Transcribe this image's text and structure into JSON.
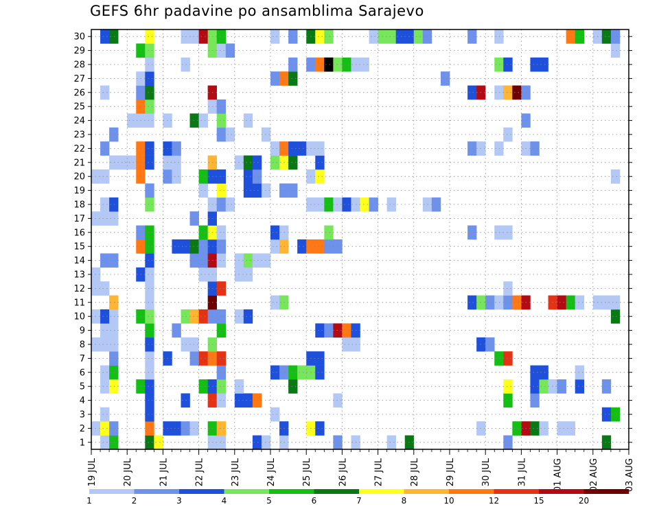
{
  "title": "GEFS 6hr padavine po ansamblima Sarajevo",
  "chart_data": {
    "type": "heatmap",
    "title": "GEFS 6hr padavine po ansamblima Sarajevo",
    "y_axis": {
      "label": "",
      "ticks": [
        1,
        2,
        3,
        4,
        5,
        6,
        7,
        8,
        9,
        10,
        11,
        12,
        13,
        14,
        15,
        16,
        17,
        18,
        19,
        20,
        21,
        22,
        23,
        24,
        25,
        26,
        27,
        28,
        29,
        30
      ],
      "range": [
        0,
        30
      ]
    },
    "x_axis": {
      "label": "",
      "ticks": [
        "19 JUL",
        "20 JUL",
        "21 JUL",
        "22 JUL",
        "23 JUL",
        "24 JUL",
        "25 JUL",
        "26 JUL",
        "27 JUL",
        "28 JUL",
        "29 JUL",
        "30 JUL",
        "31 JUL",
        "01 AUG",
        "02 AUG",
        "03 AUG"
      ],
      "step": "6 h",
      "columns": 60
    },
    "grid": true,
    "colorbar": {
      "placement": "bottom",
      "labels": [
        "1",
        "2",
        "3",
        "4",
        "5",
        "6",
        "7",
        "8",
        "10",
        "12",
        "15",
        "20"
      ],
      "colors": [
        "#b4c8f5",
        "#6e91eb",
        "#1e50dc",
        "#78e65a",
        "#14be14",
        "#0a7814",
        "#ffff1e",
        "#ffb432",
        "#ff7814",
        "#e63214",
        "#b40a14",
        "#6e0000"
      ]
    },
    "cells": [
      [
        1,
        2,
        1
      ],
      [
        1,
        3,
        5
      ],
      [
        1,
        7,
        6
      ],
      [
        1,
        8,
        7
      ],
      [
        1,
        14,
        1
      ],
      [
        1,
        15,
        1
      ],
      [
        1,
        19,
        3
      ],
      [
        1,
        20,
        1
      ],
      [
        1,
        22,
        1
      ],
      [
        1,
        28,
        2
      ],
      [
        1,
        30,
        1
      ],
      [
        1,
        34,
        1
      ],
      [
        1,
        36,
        6
      ],
      [
        1,
        47,
        2
      ],
      [
        1,
        58,
        6
      ],
      [
        2,
        1,
        1
      ],
      [
        2,
        2,
        7
      ],
      [
        2,
        3,
        2
      ],
      [
        2,
        7,
        9
      ],
      [
        2,
        9,
        3
      ],
      [
        2,
        10,
        3
      ],
      [
        2,
        11,
        2
      ],
      [
        2,
        12,
        1
      ],
      [
        2,
        14,
        5
      ],
      [
        2,
        15,
        8
      ],
      [
        2,
        22,
        3
      ],
      [
        2,
        25,
        7
      ],
      [
        2,
        26,
        3
      ],
      [
        2,
        44,
        1
      ],
      [
        2,
        48,
        5
      ],
      [
        2,
        49,
        11
      ],
      [
        2,
        50,
        6
      ],
      [
        2,
        51,
        1
      ],
      [
        2,
        53,
        1
      ],
      [
        2,
        54,
        1
      ],
      [
        3,
        2,
        1
      ],
      [
        3,
        7,
        3
      ],
      [
        3,
        21,
        1
      ],
      [
        3,
        58,
        3
      ],
      [
        3,
        59,
        5
      ],
      [
        4,
        7,
        3
      ],
      [
        4,
        11,
        3
      ],
      [
        4,
        14,
        10
      ],
      [
        4,
        15,
        1
      ],
      [
        4,
        17,
        3
      ],
      [
        4,
        18,
        3
      ],
      [
        4,
        19,
        9
      ],
      [
        4,
        28,
        1
      ],
      [
        4,
        47,
        5
      ],
      [
        4,
        50,
        2
      ],
      [
        5,
        2,
        1
      ],
      [
        5,
        3,
        7
      ],
      [
        5,
        6,
        5
      ],
      [
        5,
        7,
        3
      ],
      [
        5,
        13,
        5
      ],
      [
        5,
        14,
        3
      ],
      [
        5,
        15,
        4
      ],
      [
        5,
        17,
        1
      ],
      [
        5,
        23,
        6
      ],
      [
        5,
        47,
        7
      ],
      [
        5,
        50,
        3
      ],
      [
        5,
        51,
        4
      ],
      [
        5,
        52,
        1
      ],
      [
        5,
        53,
        2
      ],
      [
        5,
        55,
        3
      ],
      [
        5,
        58,
        2
      ],
      [
        6,
        2,
        1
      ],
      [
        6,
        3,
        5
      ],
      [
        6,
        7,
        1
      ],
      [
        6,
        15,
        2
      ],
      [
        6,
        21,
        3
      ],
      [
        6,
        22,
        2
      ],
      [
        6,
        23,
        5
      ],
      [
        6,
        24,
        4
      ],
      [
        6,
        25,
        4
      ],
      [
        6,
        26,
        3
      ],
      [
        6,
        50,
        3
      ],
      [
        6,
        51,
        3
      ],
      [
        6,
        55,
        1
      ],
      [
        7,
        3,
        2
      ],
      [
        7,
        7,
        1
      ],
      [
        7,
        9,
        3
      ],
      [
        7,
        12,
        2
      ],
      [
        7,
        13,
        10
      ],
      [
        7,
        14,
        9
      ],
      [
        7,
        15,
        10
      ],
      [
        7,
        25,
        3
      ],
      [
        7,
        26,
        3
      ],
      [
        7,
        46,
        5
      ],
      [
        7,
        47,
        10
      ],
      [
        8,
        1,
        1
      ],
      [
        8,
        2,
        1
      ],
      [
        8,
        3,
        1
      ],
      [
        8,
        7,
        3
      ],
      [
        8,
        11,
        1
      ],
      [
        8,
        12,
        1
      ],
      [
        8,
        14,
        4
      ],
      [
        8,
        29,
        1
      ],
      [
        8,
        30,
        1
      ],
      [
        8,
        44,
        3
      ],
      [
        8,
        45,
        2
      ],
      [
        9,
        2,
        1
      ],
      [
        9,
        3,
        1
      ],
      [
        9,
        7,
        5
      ],
      [
        9,
        10,
        2
      ],
      [
        9,
        15,
        5
      ],
      [
        9,
        26,
        3
      ],
      [
        9,
        27,
        2
      ],
      [
        9,
        28,
        11
      ],
      [
        9,
        29,
        9
      ],
      [
        9,
        30,
        3
      ],
      [
        10,
        1,
        1
      ],
      [
        10,
        2,
        3
      ],
      [
        10,
        3,
        1
      ],
      [
        10,
        6,
        5
      ],
      [
        10,
        7,
        4
      ],
      [
        10,
        11,
        4
      ],
      [
        10,
        12,
        8
      ],
      [
        10,
        13,
        10
      ],
      [
        10,
        14,
        2
      ],
      [
        10,
        15,
        2
      ],
      [
        10,
        17,
        1
      ],
      [
        10,
        18,
        3
      ],
      [
        10,
        59,
        6
      ],
      [
        11,
        3,
        8
      ],
      [
        11,
        7,
        1
      ],
      [
        11,
        14,
        12
      ],
      [
        11,
        21,
        1
      ],
      [
        11,
        22,
        4
      ],
      [
        11,
        43,
        3
      ],
      [
        11,
        44,
        4
      ],
      [
        11,
        45,
        2
      ],
      [
        11,
        46,
        1
      ],
      [
        11,
        47,
        2
      ],
      [
        11,
        48,
        9
      ],
      [
        11,
        49,
        11
      ],
      [
        11,
        52,
        10
      ],
      [
        11,
        53,
        11
      ],
      [
        11,
        54,
        5
      ],
      [
        11,
        55,
        1
      ],
      [
        11,
        57,
        1
      ],
      [
        11,
        58,
        1
      ],
      [
        11,
        59,
        1
      ],
      [
        12,
        1,
        1
      ],
      [
        12,
        2,
        1
      ],
      [
        12,
        7,
        1
      ],
      [
        12,
        14,
        3
      ],
      [
        12,
        15,
        10
      ],
      [
        12,
        47,
        1
      ],
      [
        13,
        1,
        1
      ],
      [
        13,
        6,
        3
      ],
      [
        13,
        7,
        1
      ],
      [
        13,
        13,
        1
      ],
      [
        13,
        14,
        1
      ],
      [
        13,
        17,
        1
      ],
      [
        13,
        18,
        1
      ],
      [
        14,
        2,
        2
      ],
      [
        14,
        3,
        2
      ],
      [
        14,
        7,
        3
      ],
      [
        14,
        12,
        2
      ],
      [
        14,
        13,
        2
      ],
      [
        14,
        14,
        11
      ],
      [
        14,
        15,
        1
      ],
      [
        14,
        17,
        1
      ],
      [
        14,
        18,
        4
      ],
      [
        14,
        19,
        1
      ],
      [
        14,
        20,
        1
      ],
      [
        15,
        6,
        9
      ],
      [
        15,
        7,
        5
      ],
      [
        15,
        10,
        3
      ],
      [
        15,
        11,
        3
      ],
      [
        15,
        12,
        6
      ],
      [
        15,
        13,
        2
      ],
      [
        15,
        14,
        3
      ],
      [
        15,
        15,
        2
      ],
      [
        15,
        21,
        1
      ],
      [
        15,
        22,
        8
      ],
      [
        15,
        24,
        3
      ],
      [
        15,
        25,
        9
      ],
      [
        15,
        26,
        9
      ],
      [
        15,
        27,
        2
      ],
      [
        15,
        28,
        2
      ],
      [
        16,
        6,
        2
      ],
      [
        16,
        7,
        5
      ],
      [
        16,
        13,
        5
      ],
      [
        16,
        14,
        7
      ],
      [
        16,
        15,
        1
      ],
      [
        16,
        21,
        3
      ],
      [
        16,
        22,
        1
      ],
      [
        16,
        27,
        4
      ],
      [
        16,
        43,
        2
      ],
      [
        16,
        46,
        1
      ],
      [
        16,
        47,
        1
      ],
      [
        17,
        1,
        1
      ],
      [
        17,
        2,
        1
      ],
      [
        17,
        3,
        1
      ],
      [
        17,
        12,
        2
      ],
      [
        17,
        14,
        3
      ],
      [
        18,
        2,
        1
      ],
      [
        18,
        3,
        3
      ],
      [
        18,
        7,
        4
      ],
      [
        18,
        14,
        1
      ],
      [
        18,
        15,
        2
      ],
      [
        18,
        16,
        1
      ],
      [
        18,
        25,
        1
      ],
      [
        18,
        26,
        1
      ],
      [
        18,
        27,
        5
      ],
      [
        18,
        28,
        1
      ],
      [
        18,
        29,
        3
      ],
      [
        18,
        30,
        1
      ],
      [
        18,
        31,
        7
      ],
      [
        18,
        32,
        2
      ],
      [
        18,
        34,
        1
      ],
      [
        18,
        38,
        1
      ],
      [
        18,
        39,
        2
      ],
      [
        19,
        7,
        2
      ],
      [
        19,
        13,
        1
      ],
      [
        19,
        15,
        7
      ],
      [
        19,
        18,
        3
      ],
      [
        19,
        19,
        3
      ],
      [
        19,
        20,
        1
      ],
      [
        19,
        22,
        2
      ],
      [
        19,
        23,
        2
      ],
      [
        20,
        1,
        1
      ],
      [
        20,
        2,
        1
      ],
      [
        20,
        6,
        9
      ],
      [
        20,
        9,
        2
      ],
      [
        20,
        10,
        1
      ],
      [
        20,
        13,
        5
      ],
      [
        20,
        14,
        3
      ],
      [
        20,
        15,
        3
      ],
      [
        20,
        18,
        3
      ],
      [
        20,
        19,
        2
      ],
      [
        20,
        25,
        1
      ],
      [
        20,
        26,
        7
      ],
      [
        20,
        59,
        1
      ],
      [
        21,
        3,
        1
      ],
      [
        21,
        4,
        1
      ],
      [
        21,
        5,
        1
      ],
      [
        21,
        6,
        9
      ],
      [
        21,
        7,
        3
      ],
      [
        21,
        9,
        1
      ],
      [
        21,
        10,
        1
      ],
      [
        21,
        14,
        8
      ],
      [
        21,
        17,
        1
      ],
      [
        21,
        18,
        6
      ],
      [
        21,
        19,
        3
      ],
      [
        21,
        21,
        4
      ],
      [
        21,
        22,
        7
      ],
      [
        21,
        23,
        6
      ],
      [
        21,
        26,
        3
      ],
      [
        22,
        2,
        2
      ],
      [
        22,
        6,
        9
      ],
      [
        22,
        7,
        3
      ],
      [
        22,
        9,
        3
      ],
      [
        22,
        10,
        2
      ],
      [
        22,
        21,
        1
      ],
      [
        22,
        22,
        9
      ],
      [
        22,
        23,
        3
      ],
      [
        22,
        24,
        3
      ],
      [
        22,
        25,
        1
      ],
      [
        22,
        26,
        1
      ],
      [
        22,
        43,
        2
      ],
      [
        22,
        44,
        1
      ],
      [
        22,
        46,
        1
      ],
      [
        22,
        49,
        1
      ],
      [
        22,
        50,
        2
      ],
      [
        23,
        3,
        2
      ],
      [
        23,
        15,
        2
      ],
      [
        23,
        16,
        1
      ],
      [
        23,
        20,
        1
      ],
      [
        23,
        47,
        1
      ],
      [
        24,
        5,
        1
      ],
      [
        24,
        6,
        1
      ],
      [
        24,
        7,
        1
      ],
      [
        24,
        9,
        1
      ],
      [
        24,
        12,
        6
      ],
      [
        24,
        13,
        1
      ],
      [
        24,
        15,
        4
      ],
      [
        24,
        18,
        1
      ],
      [
        24,
        49,
        2
      ],
      [
        25,
        6,
        9
      ],
      [
        25,
        7,
        4
      ],
      [
        25,
        14,
        1
      ],
      [
        25,
        15,
        2
      ],
      [
        26,
        2,
        1
      ],
      [
        26,
        6,
        2
      ],
      [
        26,
        7,
        6
      ],
      [
        26,
        14,
        11
      ],
      [
        26,
        43,
        3
      ],
      [
        26,
        44,
        11
      ],
      [
        26,
        46,
        1
      ],
      [
        26,
        47,
        8
      ],
      [
        26,
        48,
        12
      ],
      [
        26,
        49,
        2
      ],
      [
        27,
        6,
        1
      ],
      [
        27,
        7,
        3
      ],
      [
        27,
        21,
        2
      ],
      [
        27,
        22,
        9
      ],
      [
        27,
        23,
        6
      ],
      [
        27,
        40,
        2
      ],
      [
        28,
        7,
        1
      ],
      [
        28,
        11,
        1
      ],
      [
        28,
        23,
        2
      ],
      [
        28,
        25,
        2
      ],
      [
        28,
        26,
        9
      ],
      [
        28,
        27,
        13
      ],
      [
        28,
        28,
        4
      ],
      [
        28,
        29,
        5
      ],
      [
        28,
        30,
        1
      ],
      [
        28,
        31,
        1
      ],
      [
        28,
        46,
        4
      ],
      [
        28,
        47,
        3
      ],
      [
        28,
        50,
        3
      ],
      [
        28,
        51,
        3
      ],
      [
        29,
        6,
        5
      ],
      [
        29,
        7,
        4
      ],
      [
        29,
        14,
        4
      ],
      [
        29,
        15,
        1
      ],
      [
        29,
        16,
        2
      ],
      [
        29,
        59,
        1
      ],
      [
        30,
        2,
        3
      ],
      [
        30,
        3,
        6
      ],
      [
        30,
        7,
        7
      ],
      [
        30,
        11,
        1
      ],
      [
        30,
        12,
        1
      ],
      [
        30,
        13,
        11
      ],
      [
        30,
        14,
        4
      ],
      [
        30,
        15,
        5
      ],
      [
        30,
        21,
        1
      ],
      [
        30,
        23,
        2
      ],
      [
        30,
        25,
        6
      ],
      [
        30,
        26,
        7
      ],
      [
        30,
        27,
        4
      ],
      [
        30,
        32,
        1
      ],
      [
        30,
        33,
        4
      ],
      [
        30,
        34,
        4
      ],
      [
        30,
        35,
        3
      ],
      [
        30,
        36,
        3
      ],
      [
        30,
        37,
        4
      ],
      [
        30,
        38,
        2
      ],
      [
        30,
        43,
        2
      ],
      [
        30,
        46,
        1
      ],
      [
        30,
        54,
        9
      ],
      [
        30,
        55,
        5
      ],
      [
        30,
        57,
        1
      ],
      [
        30,
        58,
        6
      ],
      [
        30,
        59,
        2
      ]
    ]
  }
}
